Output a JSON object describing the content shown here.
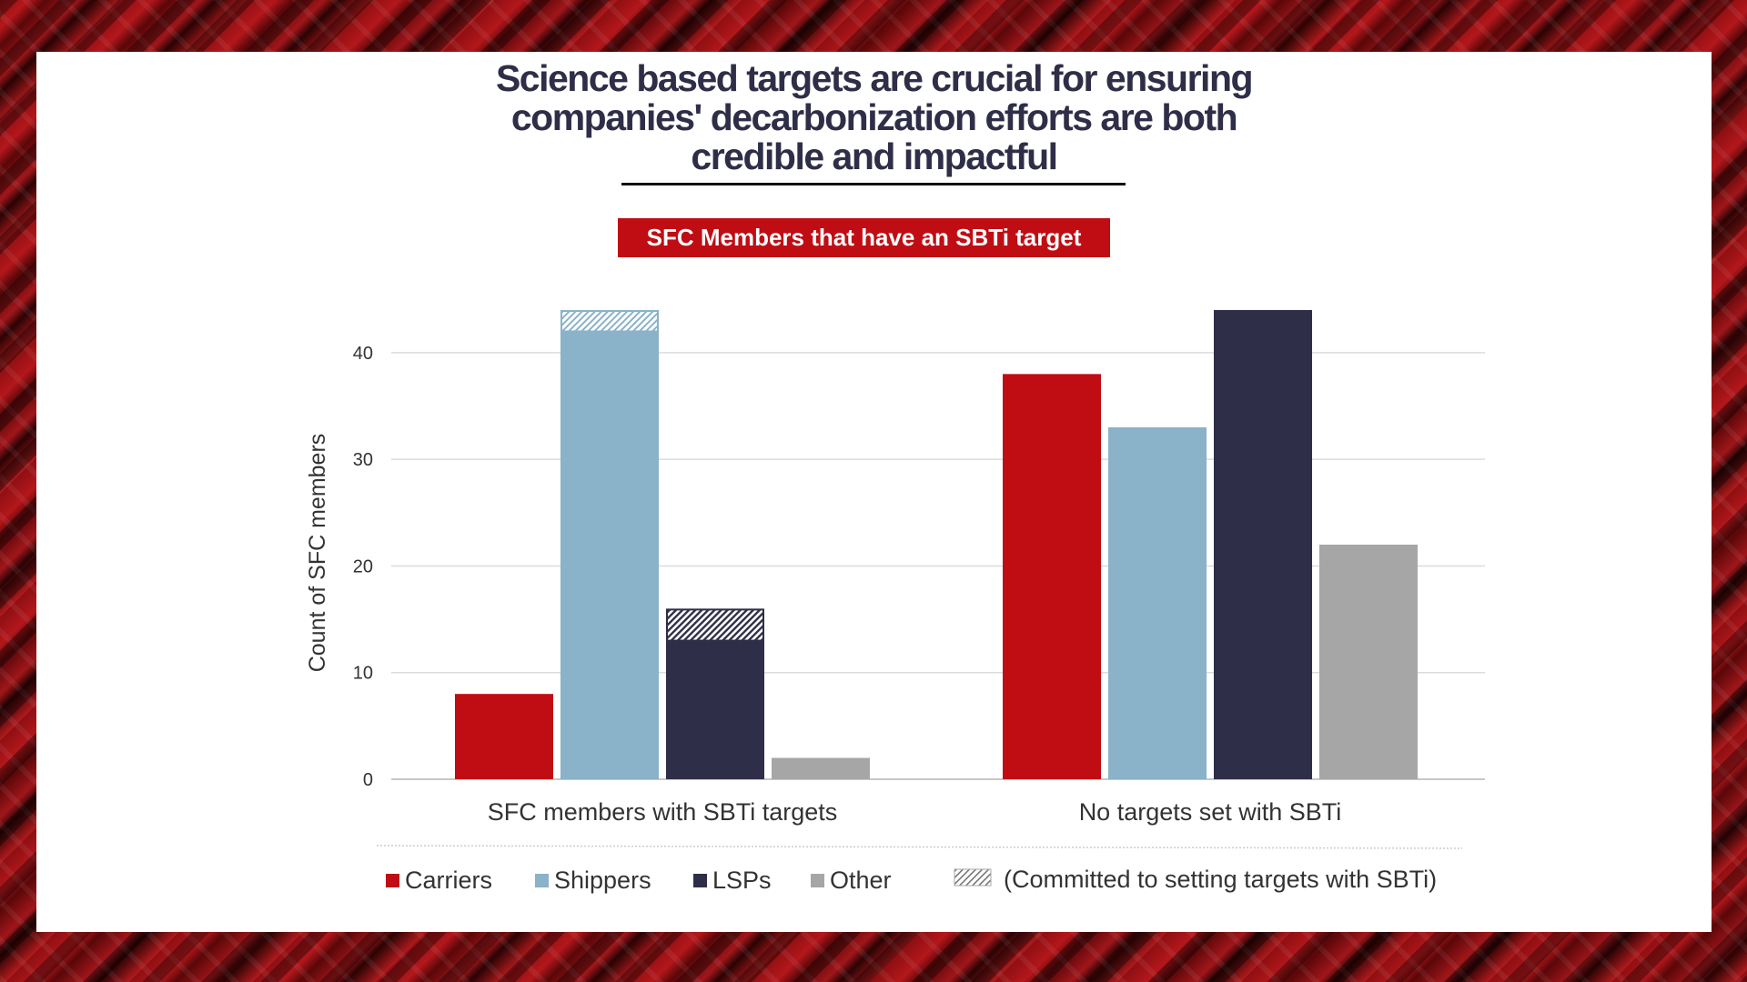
{
  "headline": {
    "line1": "Science based targets are crucial for ensuring",
    "line2": "companies' decarbonization efforts are both",
    "line3": "credible and impactful"
  },
  "chart_data": {
    "type": "bar",
    "title": "SFC Members that have an SBTi target",
    "ylabel": "Count of SFC members",
    "xlabel": "",
    "ylim": [
      0,
      44
    ],
    "yticks": [
      0,
      10,
      20,
      30,
      40
    ],
    "grid": true,
    "legend_position": "bottom",
    "categories": [
      "SFC members with SBTi targets",
      "No targets set with SBTi"
    ],
    "series": [
      {
        "name": "Carriers",
        "color": "#c00d14",
        "values": [
          8,
          38
        ],
        "committed": [
          0,
          0
        ]
      },
      {
        "name": "Shippers",
        "color": "#8ab2c9",
        "values": [
          42,
          33
        ],
        "committed": [
          2,
          0
        ]
      },
      {
        "name": "LSPs",
        "color": "#2f2e48",
        "values": [
          13,
          44
        ],
        "committed": [
          3,
          0
        ]
      },
      {
        "name": "Other",
        "color": "#a6a6a6",
        "values": [
          2,
          22
        ],
        "committed": [
          0,
          0
        ]
      }
    ],
    "committed_legend": "(Committed to setting targets with SBTi)"
  }
}
